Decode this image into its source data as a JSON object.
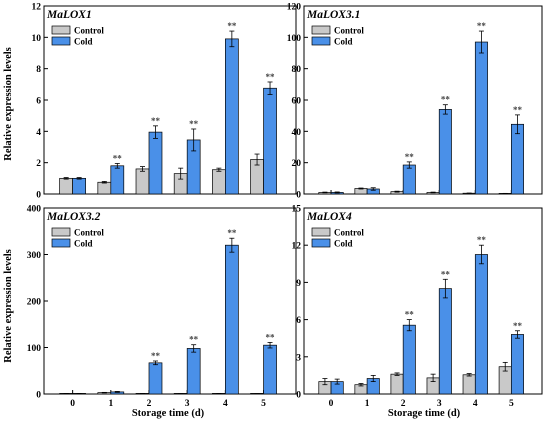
{
  "colors": {
    "control": "#c9c9c9",
    "cold": "#4a90e8",
    "stroke": "#000000",
    "sig": "#444444"
  },
  "figure": {
    "shared_ylabel": "Relative expression levels",
    "shared_xlabel": "Storage time (d)"
  },
  "chart_data": [
    {
      "type": "bar",
      "title": "MaLOX1",
      "categories": [
        "0",
        "1",
        "2",
        "3",
        "4",
        "5"
      ],
      "ylim": [
        0,
        12
      ],
      "yticks": [
        "0",
        "2",
        "4",
        "6",
        "8",
        "10",
        "12"
      ],
      "ylabel": "Relative expression levels",
      "xlabel": "",
      "show_xticks": false,
      "legend": "top-left",
      "grid": false,
      "series": [
        {
          "name": "Control",
          "values": [
            1.0,
            0.75,
            1.6,
            1.3,
            1.55,
            2.2
          ],
          "errors": [
            0.05,
            0.05,
            0.15,
            0.35,
            0.1,
            0.35
          ],
          "sig": [
            "",
            "",
            "",
            "",
            "",
            ""
          ]
        },
        {
          "name": "Cold",
          "values": [
            1.0,
            1.8,
            3.95,
            3.45,
            9.9,
            6.75
          ],
          "errors": [
            0.05,
            0.15,
            0.4,
            0.7,
            0.5,
            0.4
          ],
          "sig": [
            "",
            "**",
            "**",
            "**",
            "**",
            "**"
          ]
        }
      ]
    },
    {
      "type": "bar",
      "title": "MaLOX3.1",
      "categories": [
        "0",
        "1",
        "2",
        "3",
        "4",
        "5"
      ],
      "ylim": [
        0,
        120
      ],
      "yticks": [
        "0",
        "20",
        "40",
        "60",
        "80",
        "100",
        "120"
      ],
      "ylabel": "",
      "xlabel": "",
      "show_xticks": false,
      "legend": "top-left",
      "grid": false,
      "series": [
        {
          "name": "Control",
          "values": [
            1.0,
            3.5,
            1.5,
            1.0,
            0.5,
            0.3
          ],
          "errors": [
            0.2,
            0.3,
            0.3,
            0.2,
            0.1,
            0.1
          ],
          "sig": [
            "",
            "",
            "",
            "",
            "",
            ""
          ]
        },
        {
          "name": "Cold",
          "values": [
            1.0,
            3.2,
            18.5,
            54.0,
            97.0,
            44.5
          ],
          "errors": [
            0.3,
            0.8,
            2.0,
            3.0,
            7.0,
            6.0
          ],
          "sig": [
            "",
            "",
            "**",
            "**",
            "**",
            "**"
          ]
        }
      ]
    },
    {
      "type": "bar",
      "title": "MaLOX3.2",
      "categories": [
        "0",
        "1",
        "2",
        "3",
        "4",
        "5"
      ],
      "ylim": [
        0,
        400
      ],
      "yticks": [
        "0",
        "100",
        "200",
        "300",
        "400"
      ],
      "ylabel": "Relative expression levels",
      "xlabel": "Storage time (d)",
      "show_xticks": true,
      "legend": "top-left",
      "grid": false,
      "series": [
        {
          "name": "Control",
          "values": [
            1.0,
            3.0,
            1.0,
            0.5,
            1.0,
            0.5
          ],
          "errors": [
            0.3,
            0.5,
            0.2,
            0.1,
            0.2,
            0.1
          ],
          "sig": [
            "",
            "",
            "",
            "",
            "",
            ""
          ]
        },
        {
          "name": "Cold",
          "values": [
            1.0,
            4.5,
            67.0,
            98.0,
            320.0,
            105.0
          ],
          "errors": [
            0.3,
            1.0,
            4.0,
            8.0,
            15.0,
            6.0
          ],
          "sig": [
            "",
            "",
            "**",
            "**",
            "**",
            "**"
          ]
        }
      ]
    },
    {
      "type": "bar",
      "title": "MaLOX4",
      "categories": [
        "0",
        "1",
        "2",
        "3",
        "4",
        "5"
      ],
      "ylim": [
        0,
        15
      ],
      "yticks": [
        "0",
        "3",
        "6",
        "9",
        "12",
        "15"
      ],
      "ylabel": "",
      "xlabel": "Storage time (d)",
      "show_xticks": true,
      "legend": "top-left",
      "grid": false,
      "series": [
        {
          "name": "Control",
          "values": [
            1.0,
            0.75,
            1.6,
            1.3,
            1.55,
            2.2
          ],
          "errors": [
            0.25,
            0.1,
            0.1,
            0.3,
            0.1,
            0.35
          ],
          "sig": [
            "",
            "",
            "",
            "",
            "",
            ""
          ]
        },
        {
          "name": "Cold",
          "values": [
            1.0,
            1.25,
            5.55,
            8.5,
            11.25,
            4.8
          ],
          "errors": [
            0.2,
            0.25,
            0.45,
            0.75,
            0.75,
            0.3
          ],
          "sig": [
            "",
            "",
            "**",
            "**",
            "**",
            "**"
          ]
        }
      ]
    }
  ]
}
